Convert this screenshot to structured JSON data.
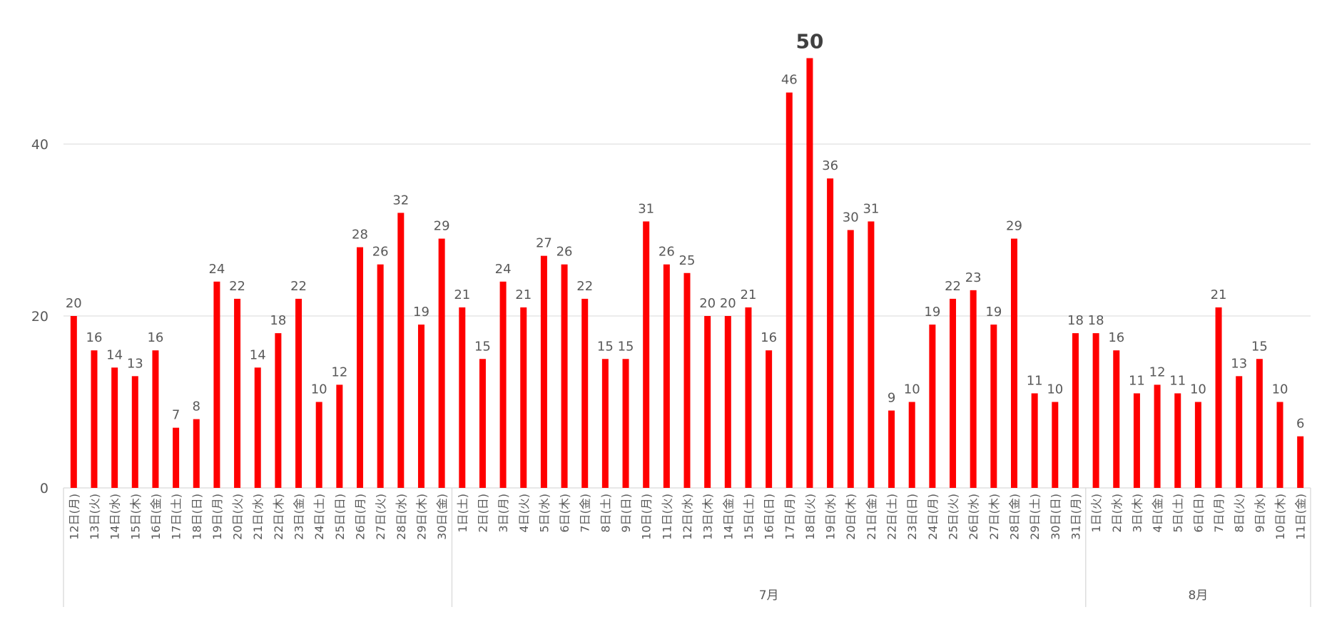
{
  "chart_data": {
    "type": "bar",
    "title": "",
    "xlabel": "",
    "ylabel": "",
    "ylim": [
      0,
      56
    ],
    "yticks": [
      0,
      20,
      40
    ],
    "grid": true,
    "legend": "none",
    "bar_color": "#FF0000",
    "groups": [
      {
        "label": "",
        "count": 19
      },
      {
        "label": "7月",
        "count": 31
      },
      {
        "label": "8月",
        "count": 11
      }
    ],
    "categories": [
      "12日(月)",
      "13日(火)",
      "14日(水)",
      "15日(木)",
      "16日(金)",
      "17日(土)",
      "18日(日)",
      "19日(月)",
      "20日(火)",
      "21日(水)",
      "22日(木)",
      "23日(金)",
      "24日(土)",
      "25日(日)",
      "26日(月)",
      "27日(火)",
      "28日(水)",
      "29日(木)",
      "30日(金)",
      "1日(土)",
      "2日(日)",
      "3日(月)",
      "4日(火)",
      "5日(水)",
      "6日(木)",
      "7日(金)",
      "8日(土)",
      "9日(日)",
      "10日(月)",
      "11日(火)",
      "12日(水)",
      "13日(木)",
      "14日(金)",
      "15日(土)",
      "16日(日)",
      "17日(月)",
      "18日(火)",
      "19日(水)",
      "20日(木)",
      "21日(金)",
      "22日(土)",
      "23日(日)",
      "24日(月)",
      "25日(火)",
      "26日(水)",
      "27日(木)",
      "28日(金)",
      "29日(土)",
      "30日(日)",
      "31日(月)",
      "1日(火)",
      "2日(水)",
      "3日(木)",
      "4日(金)",
      "5日(土)",
      "6日(日)",
      "7日(月)",
      "8日(火)",
      "9日(水)",
      "10日(木)",
      "11日(金)"
    ],
    "values": [
      20,
      16,
      14,
      13,
      16,
      7,
      8,
      24,
      22,
      14,
      18,
      22,
      10,
      12,
      28,
      26,
      32,
      19,
      29,
      21,
      15,
      24,
      21,
      27,
      26,
      22,
      15,
      15,
      31,
      26,
      25,
      20,
      20,
      21,
      16,
      46,
      50,
      36,
      30,
      31,
      9,
      10,
      19,
      22,
      23,
      19,
      29,
      11,
      10,
      18,
      18,
      16,
      11,
      12,
      11,
      10,
      21,
      13,
      15,
      10,
      6
    ],
    "highlight_max": 50
  }
}
